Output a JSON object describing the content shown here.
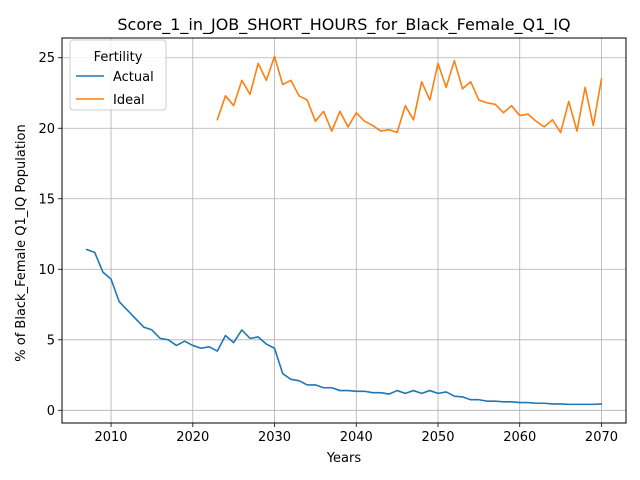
{
  "chart_data": {
    "type": "line",
    "title": "Score_1_in_JOB_SHORT_HOURS_for_Black_Female_Q1_IQ",
    "xlabel": "Years",
    "ylabel": "% of Black_Female Q1_IQ Population",
    "xlim": [
      2004,
      2073
    ],
    "ylim": [
      -0.9,
      26.4
    ],
    "xticks": [
      2010,
      2020,
      2030,
      2040,
      2050,
      2060,
      2070
    ],
    "yticks": [
      0,
      5,
      10,
      15,
      20,
      25
    ],
    "grid": true,
    "legend": {
      "title": "Fertility",
      "placement": "top-left"
    },
    "series": [
      {
        "name": "Actual",
        "color": "#1f77b4",
        "x": [
          2007,
          2008,
          2009,
          2010,
          2011,
          2012,
          2013,
          2014,
          2015,
          2016,
          2017,
          2018,
          2019,
          2020,
          2021,
          2022,
          2023,
          2024,
          2025,
          2026,
          2027,
          2028,
          2029,
          2030,
          2031,
          2032,
          2033,
          2034,
          2035,
          2036,
          2037,
          2038,
          2039,
          2040,
          2041,
          2042,
          2043,
          2044,
          2045,
          2046,
          2047,
          2048,
          2049,
          2050,
          2051,
          2052,
          2053,
          2054,
          2055,
          2056,
          2057,
          2058,
          2059,
          2060,
          2061,
          2062,
          2063,
          2064,
          2065,
          2066,
          2067,
          2068,
          2069,
          2070
        ],
        "y": [
          11.4,
          11.2,
          9.8,
          9.3,
          7.7,
          7.1,
          6.5,
          5.9,
          5.7,
          5.1,
          5.0,
          4.6,
          4.9,
          4.6,
          4.4,
          4.5,
          4.2,
          5.3,
          4.8,
          5.7,
          5.1,
          5.2,
          4.7,
          4.4,
          2.6,
          2.2,
          2.1,
          1.8,
          1.8,
          1.6,
          1.6,
          1.4,
          1.4,
          1.35,
          1.35,
          1.25,
          1.25,
          1.15,
          1.4,
          1.2,
          1.4,
          1.2,
          1.4,
          1.2,
          1.3,
          1.0,
          0.95,
          0.75,
          0.75,
          0.65,
          0.65,
          0.6,
          0.6,
          0.55,
          0.55,
          0.5,
          0.5,
          0.45,
          0.45,
          0.42,
          0.42,
          0.42,
          0.42,
          0.45
        ]
      },
      {
        "name": "Ideal",
        "color": "#ff7f0e",
        "x": [
          2023,
          2024,
          2025,
          2026,
          2027,
          2028,
          2029,
          2030,
          2031,
          2032,
          2033,
          2034,
          2035,
          2036,
          2037,
          2038,
          2039,
          2040,
          2041,
          2042,
          2043,
          2044,
          2045,
          2046,
          2047,
          2048,
          2049,
          2050,
          2051,
          2052,
          2053,
          2054,
          2055,
          2056,
          2057,
          2058,
          2059,
          2060,
          2061,
          2062,
          2063,
          2064,
          2065,
          2066,
          2067,
          2068,
          2069,
          2070
        ],
        "y": [
          20.6,
          22.3,
          21.6,
          23.4,
          22.4,
          24.6,
          23.4,
          25.1,
          23.1,
          23.4,
          22.3,
          22.0,
          20.5,
          21.2,
          19.8,
          21.2,
          20.1,
          21.1,
          20.5,
          20.2,
          19.8,
          19.9,
          19.7,
          21.6,
          20.6,
          23.3,
          22.0,
          24.6,
          22.9,
          24.8,
          22.8,
          23.3,
          22.0,
          21.8,
          21.7,
          21.1,
          21.6,
          20.9,
          21.0,
          20.5,
          20.1,
          20.6,
          19.7,
          21.9,
          19.8,
          22.9,
          20.2,
          23.5
        ]
      }
    ]
  }
}
